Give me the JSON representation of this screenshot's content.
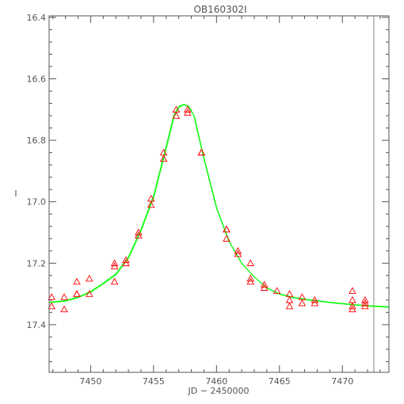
{
  "chart_data": {
    "type": "scatter",
    "title": "OB160302I",
    "xlabel": "JD − 2450000",
    "ylabel": "I",
    "xlim": [
      7446.7,
      7473.7
    ],
    "ylim": [
      17.555,
      16.395
    ],
    "y_inverted": true,
    "grid": false,
    "x_ticks": [
      7450,
      7455,
      7460,
      7465,
      7470
    ],
    "x_tick_labels": [
      "7450",
      "7455",
      "7460",
      "7465",
      "7470"
    ],
    "y_ticks": [
      16.4,
      16.6,
      16.8,
      17.0,
      17.2,
      17.4
    ],
    "y_tick_labels": [
      "16.4",
      "16.6",
      "16.8",
      "17.0",
      "17.2",
      "17.4"
    ],
    "vertical_line_x": 7472.5,
    "series": [
      {
        "kind": "points",
        "marker": "triangle-open",
        "color": "#ff0000",
        "points": [
          [
            7446.9,
            17.31
          ],
          [
            7446.9,
            17.34
          ],
          [
            7447.9,
            17.31
          ],
          [
            7447.9,
            17.35
          ],
          [
            7448.9,
            17.26
          ],
          [
            7448.9,
            17.3
          ],
          [
            7448.9,
            17.3
          ],
          [
            7449.9,
            17.25
          ],
          [
            7449.9,
            17.3
          ],
          [
            7451.9,
            17.21
          ],
          [
            7451.9,
            17.26
          ],
          [
            7451.9,
            17.2
          ],
          [
            7452.8,
            17.2
          ],
          [
            7452.8,
            17.19
          ],
          [
            7453.8,
            17.1
          ],
          [
            7453.8,
            17.11
          ],
          [
            7454.8,
            16.99
          ],
          [
            7454.8,
            17.01
          ],
          [
            7455.8,
            16.84
          ],
          [
            7455.8,
            16.86
          ],
          [
            7456.8,
            16.7
          ],
          [
            7456.8,
            16.72
          ],
          [
            7457.7,
            16.7
          ],
          [
            7457.7,
            16.71
          ],
          [
            7458.8,
            16.84
          ],
          [
            7458.8,
            16.84
          ],
          [
            7460.8,
            17.09
          ],
          [
            7460.8,
            17.09
          ],
          [
            7460.8,
            17.12
          ],
          [
            7461.7,
            17.16
          ],
          [
            7461.7,
            17.17
          ],
          [
            7462.7,
            17.2
          ],
          [
            7462.7,
            17.25
          ],
          [
            7462.7,
            17.26
          ],
          [
            7463.8,
            17.27
          ],
          [
            7463.8,
            17.28
          ],
          [
            7464.8,
            17.29
          ],
          [
            7465.8,
            17.3
          ],
          [
            7465.8,
            17.32
          ],
          [
            7465.8,
            17.34
          ],
          [
            7466.8,
            17.31
          ],
          [
            7466.8,
            17.33
          ],
          [
            7467.8,
            17.32
          ],
          [
            7467.8,
            17.33
          ],
          [
            7470.8,
            17.29
          ],
          [
            7470.8,
            17.32
          ],
          [
            7470.8,
            17.34
          ],
          [
            7470.8,
            17.35
          ],
          [
            7471.8,
            17.32
          ],
          [
            7471.8,
            17.33
          ],
          [
            7471.8,
            17.34
          ]
        ]
      },
      {
        "kind": "curve",
        "color": "#00ff00",
        "points": [
          [
            7446.7,
            17.327
          ],
          [
            7448,
            17.322
          ],
          [
            7449,
            17.31
          ],
          [
            7450,
            17.292
          ],
          [
            7451,
            17.265
          ],
          [
            7452,
            17.235
          ],
          [
            7453,
            17.18
          ],
          [
            7454,
            17.09
          ],
          [
            7455,
            16.98
          ],
          [
            7456,
            16.82
          ],
          [
            7456.6,
            16.72
          ],
          [
            7457,
            16.69
          ],
          [
            7457.4,
            16.683
          ],
          [
            7457.8,
            16.69
          ],
          [
            7458.2,
            16.72
          ],
          [
            7459,
            16.86
          ],
          [
            7460,
            17.02
          ],
          [
            7461,
            17.13
          ],
          [
            7462,
            17.2
          ],
          [
            7463,
            17.245
          ],
          [
            7464,
            17.28
          ],
          [
            7465,
            17.3
          ],
          [
            7466,
            17.31
          ],
          [
            7467,
            17.317
          ],
          [
            7468,
            17.322
          ],
          [
            7469,
            17.327
          ],
          [
            7470,
            17.331
          ],
          [
            7471,
            17.335
          ],
          [
            7472,
            17.338
          ],
          [
            7473.7,
            17.342
          ]
        ]
      }
    ]
  }
}
